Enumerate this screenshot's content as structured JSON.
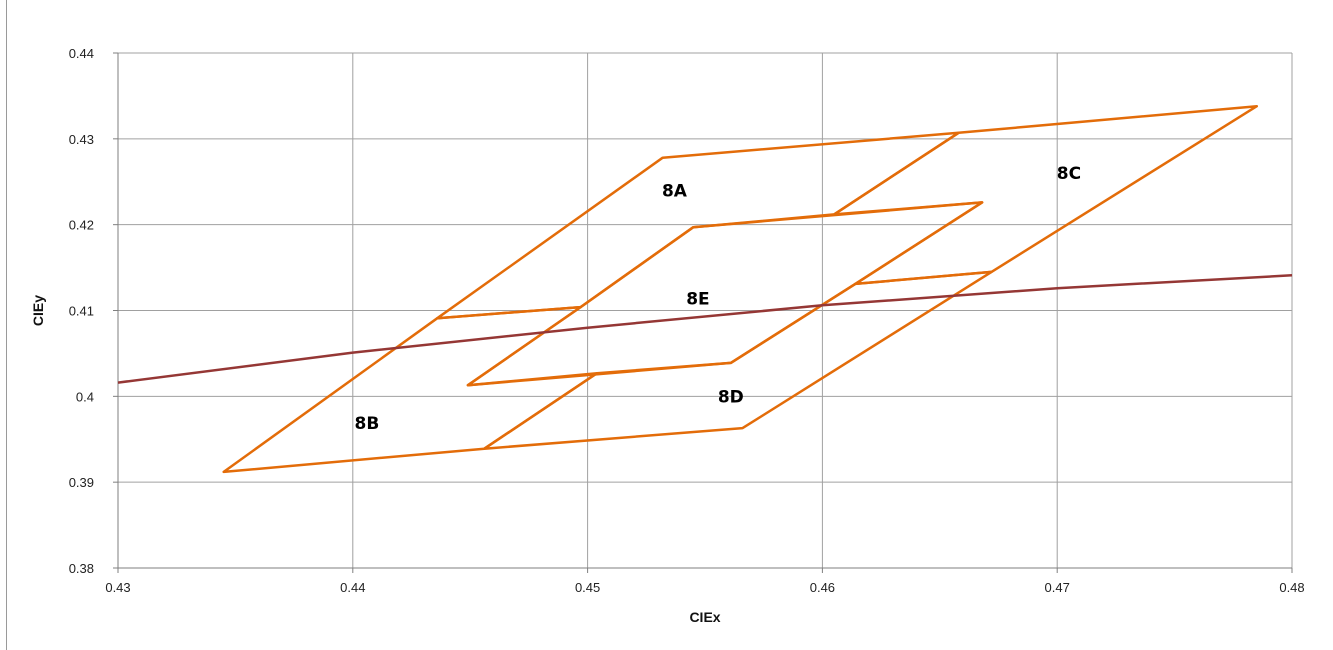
{
  "chart_data": {
    "type": "line",
    "title": "",
    "xlabel": "CIEx",
    "ylabel": "CIEy",
    "xlim": [
      0.43,
      0.48
    ],
    "ylim": [
      0.38,
      0.44
    ],
    "xticks": [
      0.43,
      0.44,
      0.45,
      0.46,
      0.47,
      0.48
    ],
    "yticks": [
      0.38,
      0.39,
      0.4,
      0.41,
      0.42,
      0.43,
      0.44
    ],
    "xtick_labels": [
      "0.43",
      "0.44",
      "0.45",
      "0.46",
      "0.47",
      "0.48"
    ],
    "ytick_labels": [
      "0.38",
      "0.39",
      "0.4",
      "0.41",
      "0.42",
      "0.43",
      "0.44"
    ],
    "grid": true,
    "colors": {
      "quadrangle": "#E36C09",
      "locus": "#953735",
      "grid": "#A0A0A0"
    },
    "series": [
      {
        "label": "8A",
        "label_pos": [
          0.4537,
          0.4233
        ],
        "points": [
          [
            0.4436,
            0.4091
          ],
          [
            0.4532,
            0.4278
          ],
          [
            0.4658,
            0.4307
          ],
          [
            0.4605,
            0.4212
          ],
          [
            0.4545,
            0.4197
          ],
          [
            0.4497,
            0.4104
          ]
        ]
      },
      {
        "label": "8B",
        "label_pos": [
          0.4406,
          0.3962
        ],
        "points": [
          [
            0.4345,
            0.3912
          ],
          [
            0.4456,
            0.3939
          ],
          [
            0.4504,
            0.4027
          ],
          [
            0.4449,
            0.4013
          ],
          [
            0.4497,
            0.4104
          ],
          [
            0.4436,
            0.4091
          ]
        ]
      },
      {
        "label": "8C",
        "label_pos": [
          0.4705,
          0.4253
        ],
        "points": [
          [
            0.4605,
            0.4212
          ],
          [
            0.4658,
            0.4307
          ],
          [
            0.4785,
            0.4338
          ],
          [
            0.4672,
            0.4145
          ],
          [
            0.4614,
            0.4131
          ],
          [
            0.4668,
            0.4226
          ]
        ]
      },
      {
        "label": "8D",
        "label_pos": [
          0.4561,
          0.3993
        ],
        "points": [
          [
            0.4456,
            0.3939
          ],
          [
            0.4566,
            0.3963
          ],
          [
            0.4672,
            0.4145
          ],
          [
            0.4614,
            0.4131
          ],
          [
            0.4561,
            0.4039
          ],
          [
            0.4504,
            0.4027
          ]
        ]
      },
      {
        "label": "8E",
        "label_pos": [
          0.4547,
          0.4107
        ],
        "points": [
          [
            0.4449,
            0.4013
          ],
          [
            0.4561,
            0.4039
          ],
          [
            0.4614,
            0.4131
          ],
          [
            0.4668,
            0.4226
          ],
          [
            0.4545,
            0.4197
          ],
          [
            0.4497,
            0.4104
          ]
        ]
      },
      {
        "label": "",
        "type": "locus",
        "points": [
          [
            0.43,
            0.4016
          ],
          [
            0.44,
            0.4051
          ],
          [
            0.45,
            0.408
          ],
          [
            0.46,
            0.4106
          ],
          [
            0.47,
            0.4126
          ],
          [
            0.48,
            0.4141
          ]
        ]
      }
    ]
  }
}
